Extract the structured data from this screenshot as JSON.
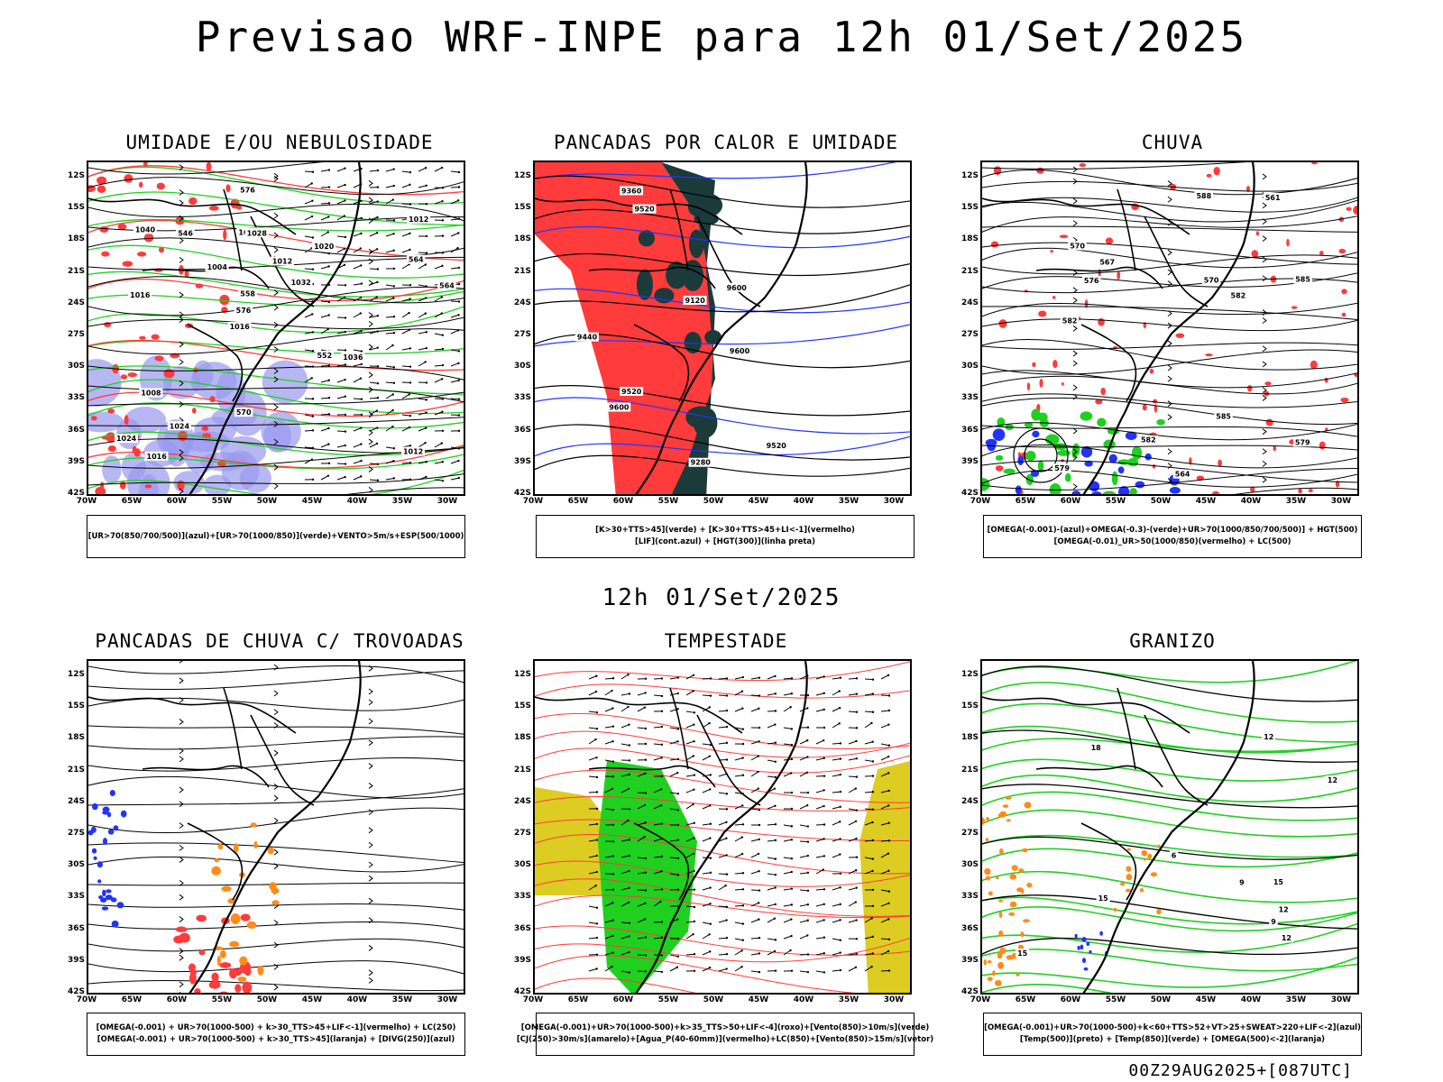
{
  "title": "Previsao WRF-INPE  para 12h 01/Set/2025",
  "mid_title": "12h 01/Set/2025",
  "footer": "00Z29AUG2025+[087UTC]",
  "axes": {
    "lat_labels": [
      "12S",
      "15S",
      "18S",
      "21S",
      "24S",
      "27S",
      "30S",
      "33S",
      "36S",
      "39S",
      "42S"
    ],
    "lon_labels": [
      "70W",
      "65W",
      "60W",
      "55W",
      "50W",
      "45W",
      "40W",
      "35W",
      "30W"
    ]
  },
  "colors": {
    "red": "#ff3b3b",
    "green": "#1fd01f",
    "blue": "#2233ff",
    "lavender": "#9999ee",
    "dark_teal": "#1b3a3a",
    "yellow": "#ddcc22",
    "orange": "#ff8c1a",
    "black": "#000000"
  },
  "panels": [
    {
      "id": "umidade",
      "title": "UMIDADE E/OU NEBULOSIDADE",
      "legend": [
        "[UR>70(850/700/500)](azul)+[UR>70(1000/850)](verde)+VENTO>5m/s+ESP(500/1000)"
      ],
      "contour_labels": [
        "1012",
        "1016",
        "1012",
        "1016",
        "1020",
        "1016",
        "1016",
        "1012",
        "1008",
        "1004",
        "1024",
        "1024",
        "1028",
        "1032",
        "1036",
        "1040",
        "576",
        "564",
        "552",
        "564",
        "576",
        "570",
        "558",
        "546"
      ]
    },
    {
      "id": "pancadas-calor",
      "title": "PANCADAS POR CALOR E UMIDADE",
      "legend": [
        "[K>30+TTS>45](verde) + [K>30+TTS>45+LI<-1](vermelho)",
        "[LIF](cont.azul) + [HGT(300)](linha preta)"
      ],
      "contour_labels": [
        "9600",
        "9520",
        "9600",
        "9440",
        "9520",
        "9360",
        "9280",
        "9120",
        "9520",
        "9600"
      ]
    },
    {
      "id": "chuva",
      "title": "CHUVA",
      "legend": [
        "[OMEGA(-0.001)-(azul)+OMEGA(-0.3)-(verde)+UR>70(1000/850/700/500)] + HGT(500)",
        "[OMEGA(-0.01)_UR>50(1000/850)(vermelho) + LC(500)"
      ],
      "contour_labels": [
        "585",
        "582",
        "585",
        "582",
        "579",
        "570",
        "567",
        "561",
        "564",
        "570",
        "576",
        "579",
        "582",
        "588"
      ]
    },
    {
      "id": "pancadas-trovoadas",
      "title": "PANCADAS DE CHUVA C/ TROVOADAS",
      "legend": [
        "[OMEGA(-0.001) + UR>70(1000-500) + k>30_TTS>45+LIF<-1](vermelho) + LC(250)",
        "[OMEGA(-0.001) + UR>70(1000-500) + k>30_TTS>45](laranja) + [DIVG(250)](azul)"
      ],
      "contour_labels": []
    },
    {
      "id": "tempestade",
      "title": "TEMPESTADE",
      "legend": [
        "[OMEGA(-0.001)+UR>70(1000-500)+k>35_TTS>50+LIF<-4](roxo)+[Vento(850)>10m/s](verde)",
        "[CJ(250)>30m/s](amarelo)+[Agua_P(40-60mm)](vermelho)+LC(850)+[Vento(850)>15m/s](vetor)"
      ],
      "contour_labels": []
    },
    {
      "id": "granizo",
      "title": "GRANIZO",
      "legend": [
        "[OMEGA(-0.001)+UR>70(1000-500)+k<60+TTS>52+VT>25+SWEAT>220+LIF<-2](azul)",
        "[Temp(500)](preto) + [Temp(850)](verde) + [OMEGA(500)<-2](laranja)"
      ],
      "contour_labels": [
        "12",
        "15",
        "18",
        "15",
        "12",
        "9",
        "6",
        "12",
        "15",
        "12",
        "9"
      ]
    }
  ]
}
